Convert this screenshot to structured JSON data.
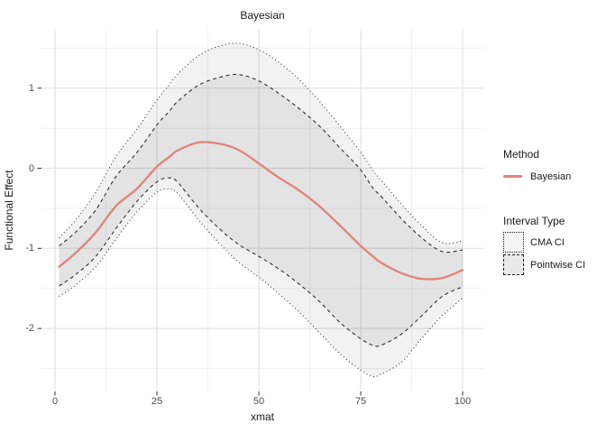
{
  "chart_data": {
    "type": "line",
    "title": "Bayesian",
    "xlabel": "xmat",
    "ylabel": "Functional Effect",
    "x_ticks": {
      "values": [
        0,
        25,
        50,
        75,
        100
      ],
      "labels": [
        "0",
        "25",
        "50",
        "75",
        "100"
      ]
    },
    "y_ticks": {
      "values": [
        1,
        0,
        -1,
        -2
      ],
      "labels": [
        "1",
        "0",
        "-1",
        "-2"
      ]
    },
    "x_minor_ticks": [
      12.5,
      37.5,
      62.5,
      87.5
    ],
    "y_minor_ticks": [
      1.5,
      0.5,
      -0.5,
      -1.5,
      -2.5
    ],
    "xlim": [
      -3.32,
      105.08
    ],
    "ylim": [
      -2.787,
      1.74
    ],
    "grid": "on",
    "legend_position": "right",
    "x": [
      1,
      5,
      10,
      15,
      20,
      25,
      28,
      30,
      35,
      40,
      45,
      50,
      55,
      60,
      65,
      70,
      75,
      78,
      80,
      85,
      90,
      95,
      100
    ],
    "series": [
      {
        "name": "mean_bayesian",
        "role": "line",
        "style": "solid",
        "values": [
          -1.23,
          -1.06,
          -0.8,
          -0.47,
          -0.26,
          0.02,
          0.14,
          0.22,
          0.32,
          0.31,
          0.23,
          0.06,
          -0.12,
          -0.28,
          -0.48,
          -0.72,
          -0.97,
          -1.1,
          -1.18,
          -1.31,
          -1.38,
          -1.37,
          -1.27
        ]
      },
      {
        "name": "pointwise_ci_upper",
        "role": "bound",
        "style": "dashed",
        "values": [
          -0.97,
          -0.8,
          -0.52,
          -0.1,
          0.19,
          0.54,
          0.71,
          0.83,
          1.03,
          1.13,
          1.17,
          1.09,
          0.93,
          0.74,
          0.52,
          0.25,
          -0.02,
          -0.25,
          -0.35,
          -0.63,
          -0.87,
          -1.04,
          -1.02
        ]
      },
      {
        "name": "pointwise_ci_lower",
        "role": "bound",
        "style": "dashed",
        "values": [
          -1.47,
          -1.33,
          -1.1,
          -0.75,
          -0.42,
          -0.17,
          -0.12,
          -0.17,
          -0.48,
          -0.74,
          -0.95,
          -1.1,
          -1.26,
          -1.45,
          -1.67,
          -1.93,
          -2.13,
          -2.21,
          -2.21,
          -2.07,
          -1.84,
          -1.6,
          -1.48
        ]
      },
      {
        "name": "cma_ci_upper",
        "role": "bound",
        "style": "dotted",
        "values": [
          -0.87,
          -0.65,
          -0.3,
          0.15,
          0.48,
          0.85,
          1.04,
          1.17,
          1.4,
          1.52,
          1.56,
          1.48,
          1.32,
          1.1,
          0.83,
          0.52,
          0.2,
          -0.03,
          -0.15,
          -0.45,
          -0.72,
          -0.93,
          -0.91
        ]
      },
      {
        "name": "cma_ci_lower",
        "role": "bound",
        "style": "dotted",
        "values": [
          -1.6,
          -1.46,
          -1.23,
          -0.88,
          -0.55,
          -0.3,
          -0.26,
          -0.31,
          -0.63,
          -0.92,
          -1.17,
          -1.36,
          -1.57,
          -1.8,
          -2.06,
          -2.32,
          -2.52,
          -2.6,
          -2.57,
          -2.42,
          -2.12,
          -1.84,
          -1.62
        ]
      }
    ],
    "colors": {
      "mean_line": "#e0837c",
      "bound_line": "#1f1f1f",
      "grid_major": "#e3e3e3",
      "grid_minor": "#f1f1f1",
      "tick": "#333333",
      "cma_ribbon_fill": "rgba(0,0,0,0.05)",
      "pointwise_ribbon_fill": "rgba(0,0,0,0.058)"
    },
    "legend": {
      "method": {
        "title": "Method",
        "entries": [
          {
            "label": "Bayesian",
            "style": "solid-red-line"
          }
        ]
      },
      "interval_type": {
        "title": "Interval Type",
        "entries": [
          {
            "label": "CMA CI",
            "style": "dotted"
          },
          {
            "label": "Pointwise CI",
            "style": "dashed"
          }
        ]
      }
    }
  }
}
